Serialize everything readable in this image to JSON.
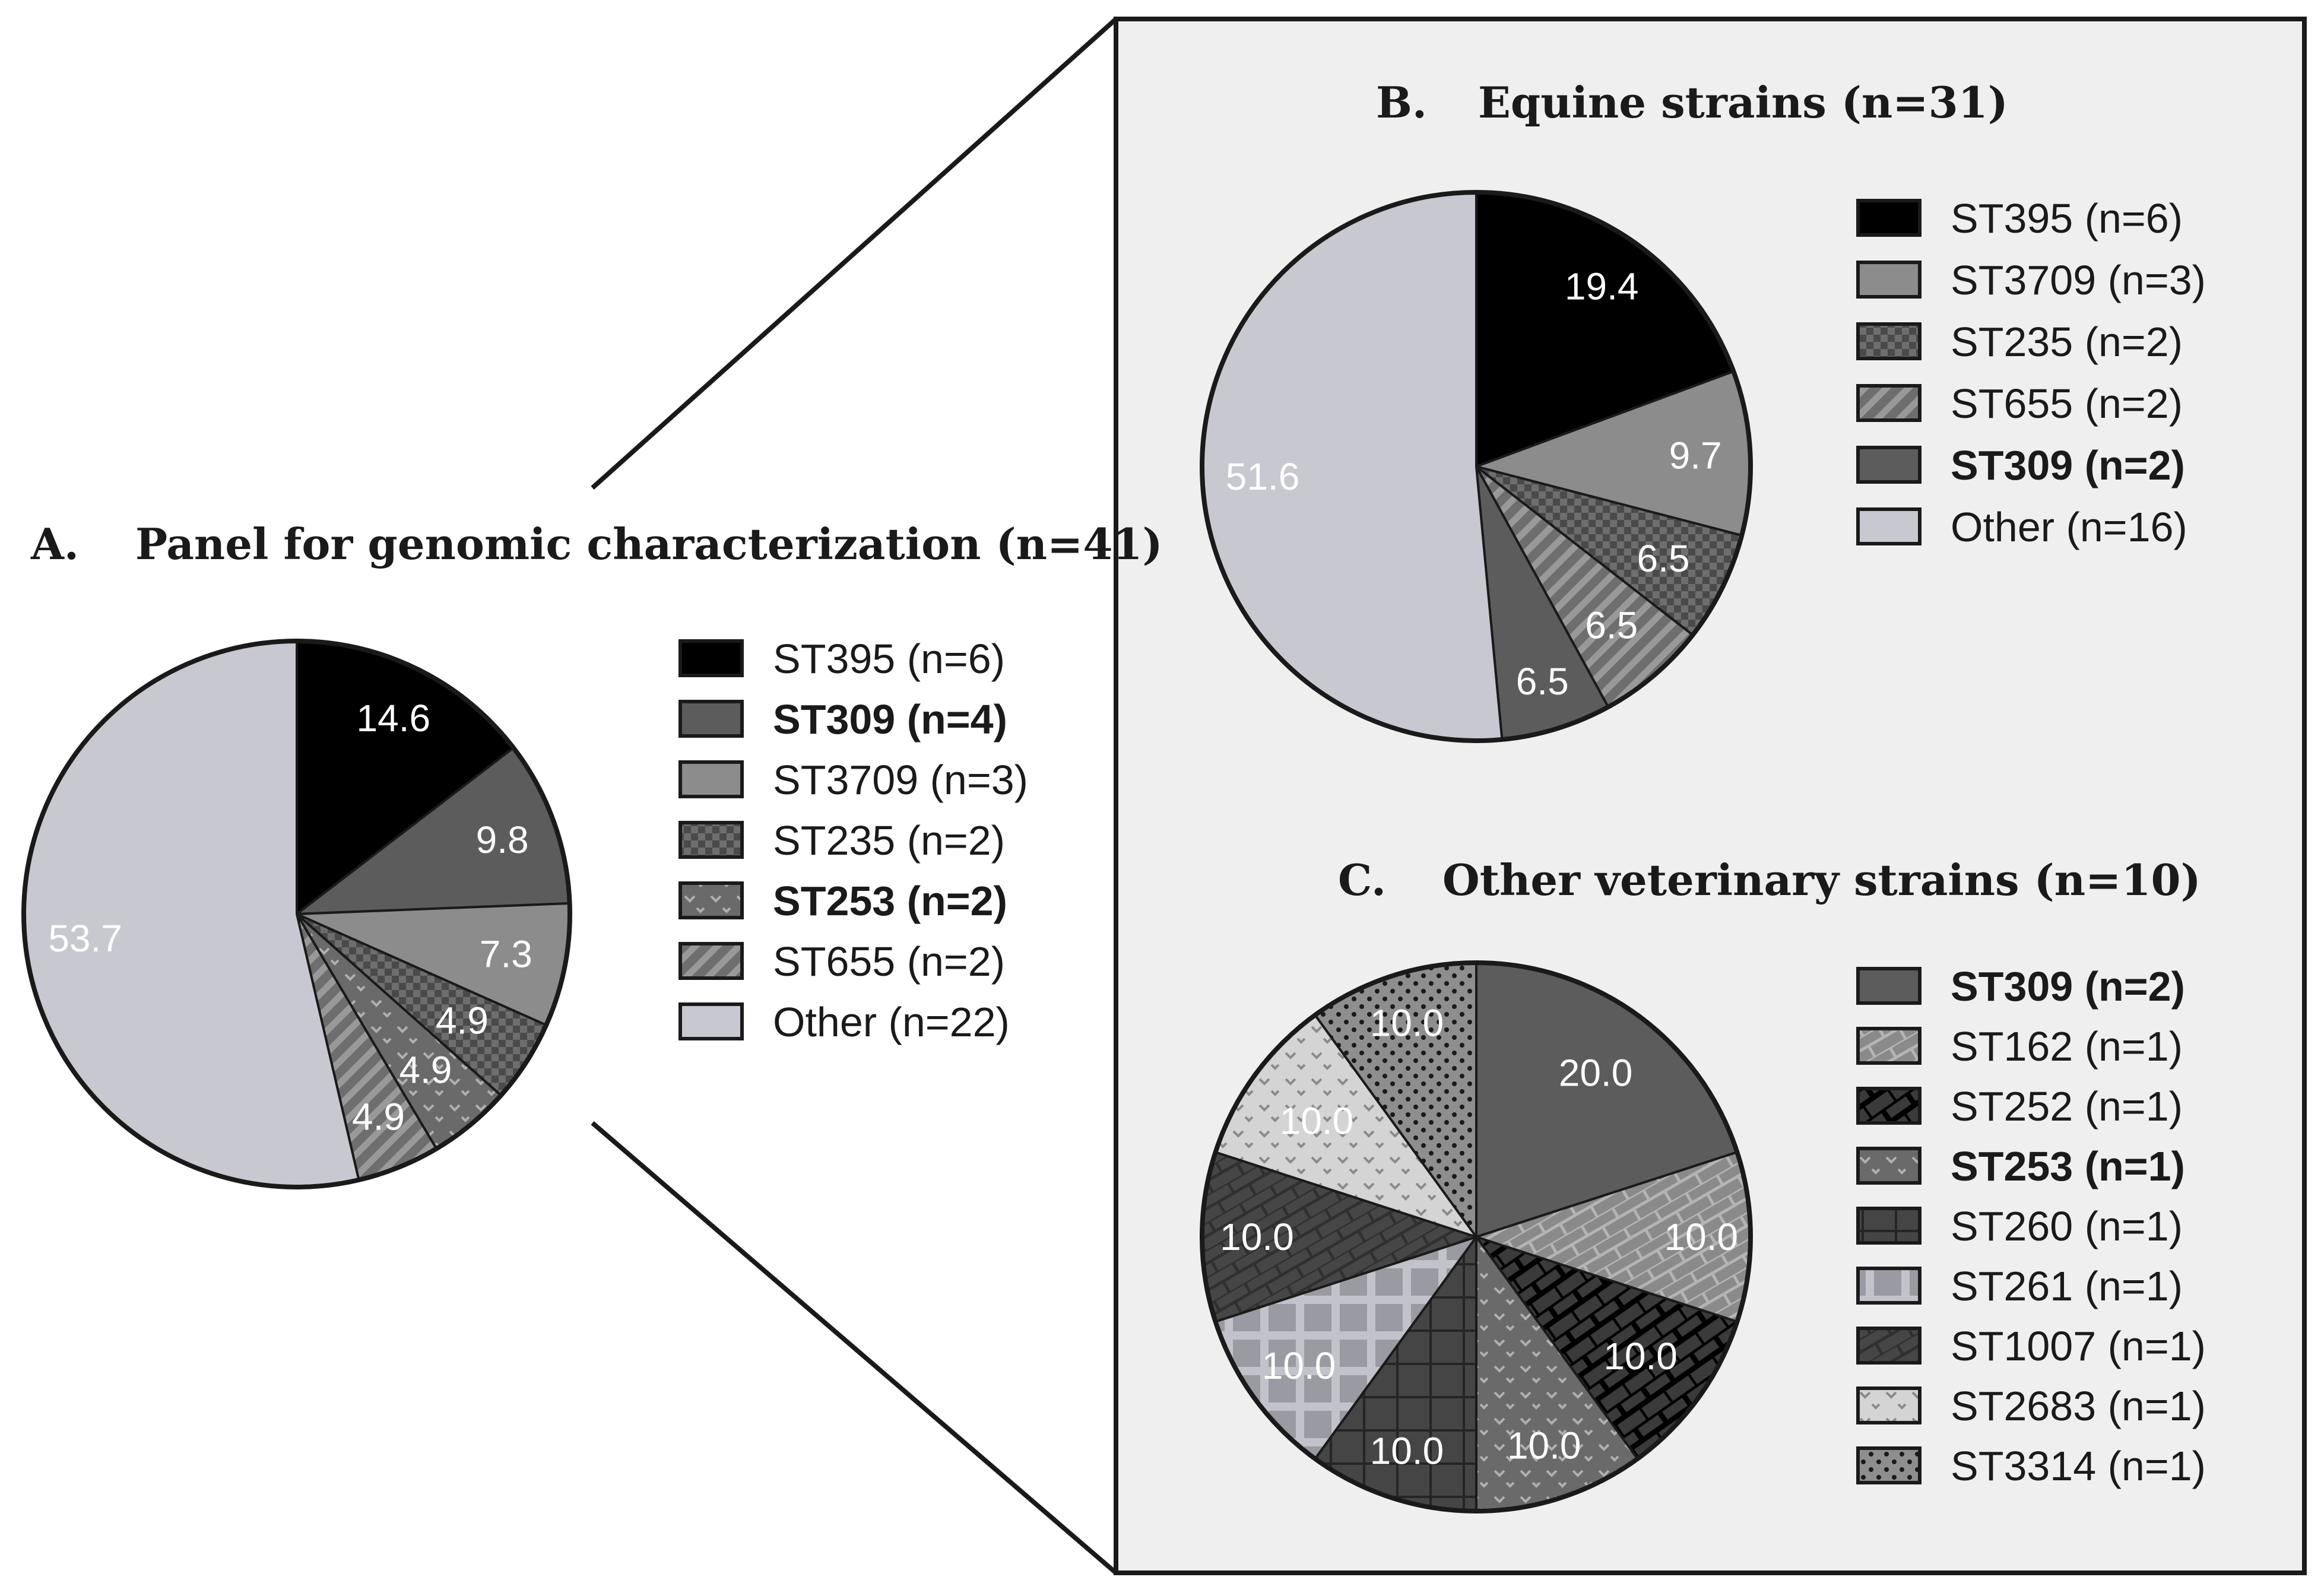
{
  "chart_data": [
    {
      "type": "pie",
      "letter": "A.",
      "title": "Panel for genomic characterization (n=41)",
      "slices": [
        {
          "label": "ST395 (n=6)",
          "value": 14.6,
          "label_text": "14.6",
          "color": "#000000",
          "pattern": "solid",
          "bold": false
        },
        {
          "label": "ST309 (n=4)",
          "value": 9.8,
          "label_text": "9.8",
          "color": "#5c5c5c",
          "pattern": "solid",
          "bold": true
        },
        {
          "label": "ST3709 (n=3)",
          "value": 7.3,
          "label_text": "7.3",
          "color": "#8c8c8c",
          "pattern": "solid",
          "bold": false
        },
        {
          "label": "ST235 (n=2)",
          "value": 4.9,
          "label_text": "4.9",
          "color": "#6e6e6e",
          "pattern": "check",
          "bold": false
        },
        {
          "label": "ST253 (n=2)",
          "value": 4.9,
          "label_text": "4.9",
          "color": "#6a6a6a",
          "pattern": "dots",
          "bold": true
        },
        {
          "label": "ST655 (n=2)",
          "value": 4.9,
          "label_text": "4.9",
          "color": "#7a7a7a",
          "pattern": "diag",
          "bold": false
        },
        {
          "label": "Other (n=22)",
          "value": 53.7,
          "label_text": "53.7",
          "color": "#c8c8d0",
          "pattern": "solid",
          "bold": false
        }
      ],
      "legend": [
        {
          "label": "ST395 (n=6)",
          "color": "#000000",
          "pattern": "solid",
          "bold": false
        },
        {
          "label": "ST309 (n=4)",
          "color": "#5c5c5c",
          "pattern": "solid",
          "bold": true
        },
        {
          "label": "ST3709 (n=3)",
          "color": "#8c8c8c",
          "pattern": "solid",
          "bold": false
        },
        {
          "label": "ST235 (n=2)",
          "color": "#6e6e6e",
          "pattern": "check",
          "bold": false
        },
        {
          "label": "ST253 (n=2)",
          "color": "#6a6a6a",
          "pattern": "dots",
          "bold": true
        },
        {
          "label": "ST655 (n=2)",
          "color": "#7a7a7a",
          "pattern": "diag",
          "bold": false
        },
        {
          "label": "Other (n=22)",
          "color": "#c8c8d0",
          "pattern": "solid",
          "bold": false
        }
      ]
    },
    {
      "type": "pie",
      "letter": "B.",
      "title": "Equine strains (n=31)",
      "slices": [
        {
          "label": "ST395 (n=6)",
          "value": 19.4,
          "label_text": "19.4",
          "color": "#000000",
          "pattern": "solid",
          "bold": false
        },
        {
          "label": "ST3709 (n=3)",
          "value": 9.7,
          "label_text": "9.7",
          "color": "#8c8c8c",
          "pattern": "solid",
          "bold": false
        },
        {
          "label": "ST235 (n=2)",
          "value": 6.5,
          "label_text": "6.5",
          "color": "#6e6e6e",
          "pattern": "check",
          "bold": false
        },
        {
          "label": "ST655 (n=2)",
          "value": 6.5,
          "label_text": "6.5",
          "color": "#7a7a7a",
          "pattern": "diag",
          "bold": false
        },
        {
          "label": "ST309 (n=2)",
          "value": 6.5,
          "label_text": "6.5",
          "color": "#5c5c5c",
          "pattern": "solid",
          "bold": true
        },
        {
          "label": "Other (n=16)",
          "value": 51.6,
          "label_text": "51.6",
          "color": "#c8c8d0",
          "pattern": "solid",
          "bold": false
        }
      ],
      "legend": [
        {
          "label": "ST395 (n=6)",
          "color": "#000000",
          "pattern": "solid",
          "bold": false
        },
        {
          "label": "ST3709 (n=3)",
          "color": "#8c8c8c",
          "pattern": "solid",
          "bold": false
        },
        {
          "label": "ST235 (n=2)",
          "color": "#6e6e6e",
          "pattern": "check",
          "bold": false
        },
        {
          "label": "ST655 (n=2)",
          "color": "#7a7a7a",
          "pattern": "diag",
          "bold": false
        },
        {
          "label": "ST309 (n=2)",
          "color": "#5c5c5c",
          "pattern": "solid",
          "bold": true
        },
        {
          "label": "Other (n=16)",
          "color": "#c8c8d0",
          "pattern": "solid",
          "bold": false
        }
      ]
    },
    {
      "type": "pie",
      "letter": "C.",
      "title": "Other veterinary strains (n=10)",
      "slices": [
        {
          "label": "ST309 (n=2)",
          "value": 20.0,
          "label_text": "20.0",
          "color": "#5c5c5c",
          "pattern": "solid",
          "bold": true
        },
        {
          "label": "ST162 (n=1)",
          "value": 10.0,
          "label_text": "10.0",
          "color": "#8a8a8a",
          "pattern": "brick",
          "bold": false
        },
        {
          "label": "ST252 (n=1)",
          "value": 10.0,
          "label_text": "10.0",
          "color": "#3a3a3a",
          "pattern": "hatch",
          "bold": false
        },
        {
          "label": "ST253 (n=1)",
          "value": 10.0,
          "label_text": "10.0",
          "color": "#6a6a6a",
          "pattern": "dots",
          "bold": true
        },
        {
          "label": "ST260 (n=1)",
          "value": 10.0,
          "label_text": "10.0",
          "color": "#3c3c3c",
          "pattern": "grid",
          "bold": false
        },
        {
          "label": "ST261 (n=1)",
          "value": 10.0,
          "label_text": "10.0",
          "color": "#9a9aa2",
          "pattern": "plaid",
          "bold": false
        },
        {
          "label": "ST1007 (n=1)",
          "value": 10.0,
          "label_text": "10.0",
          "color": "#464646",
          "pattern": "brick",
          "bold": false
        },
        {
          "label": "ST2683 (n=1)",
          "value": 10.0,
          "label_text": "10.0",
          "color": "#d4d4d4",
          "pattern": "dots",
          "bold": false
        },
        {
          "label": "ST3314 (n=1)",
          "value": 10.0,
          "label_text": "10.0",
          "color": "#8e8e8e",
          "pattern": "polka",
          "bold": false
        }
      ],
      "legend": [
        {
          "label": "ST309 (n=2)",
          "color": "#5c5c5c",
          "pattern": "solid",
          "bold": true
        },
        {
          "label": "ST162 (n=1)",
          "color": "#8a8a8a",
          "pattern": "brick",
          "bold": false
        },
        {
          "label": "ST252 (n=1)",
          "color": "#3a3a3a",
          "pattern": "hatch",
          "bold": false
        },
        {
          "label": "ST253 (n=1)",
          "color": "#6a6a6a",
          "pattern": "dots",
          "bold": true
        },
        {
          "label": "ST260 (n=1)",
          "color": "#3c3c3c",
          "pattern": "grid",
          "bold": false
        },
        {
          "label": "ST261 (n=1)",
          "color": "#9a9aa2",
          "pattern": "plaid",
          "bold": false
        },
        {
          "label": "ST1007 (n=1)",
          "color": "#464646",
          "pattern": "brick",
          "bold": false
        },
        {
          "label": "ST2683 (n=1)",
          "color": "#d4d4d4",
          "pattern": "dots",
          "bold": false
        },
        {
          "label": "ST3314 (n=1)",
          "color": "#8e8e8e",
          "pattern": "polka",
          "bold": false
        }
      ]
    }
  ]
}
